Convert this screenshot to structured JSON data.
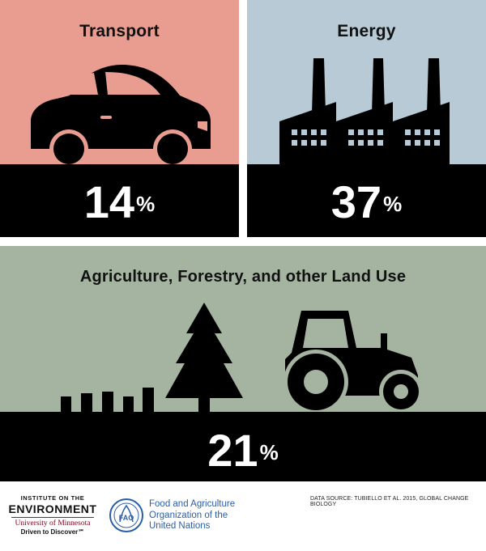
{
  "panels": {
    "transport": {
      "title": "Transport",
      "value": "14",
      "unit": "%"
    },
    "energy": {
      "title": "Energy",
      "value": "37",
      "unit": "%"
    },
    "land_use": {
      "title": "Agriculture, Forestry, and other Land Use",
      "value": "21",
      "unit": "%"
    }
  },
  "colors": {
    "transport_bg": "#e89d90",
    "energy_bg": "#b7cad6",
    "land_use_bg": "#a4b4a0",
    "ground": "#000000",
    "fao_blue": "#2a5fa8",
    "umn_maroon": "#7a0019"
  },
  "footer": {
    "ioe": {
      "line1": "INSTITUTE ON THE",
      "line2": "ENVIRONMENT",
      "line3": "University of Minnesota",
      "line4": "Driven to Discover℠"
    },
    "fao": {
      "logo_text": "FAO",
      "line1": "Food and Agriculture",
      "line2": "Organization of the",
      "line3": "United Nations"
    },
    "source": "DATA SOURCE: TUBIELLO ET AL. 2015, GLOBAL CHANGE BIOLOGY"
  },
  "icons": [
    "car-icon",
    "factory-icon",
    "tree-icon",
    "tractor-icon",
    "crops-icon"
  ]
}
